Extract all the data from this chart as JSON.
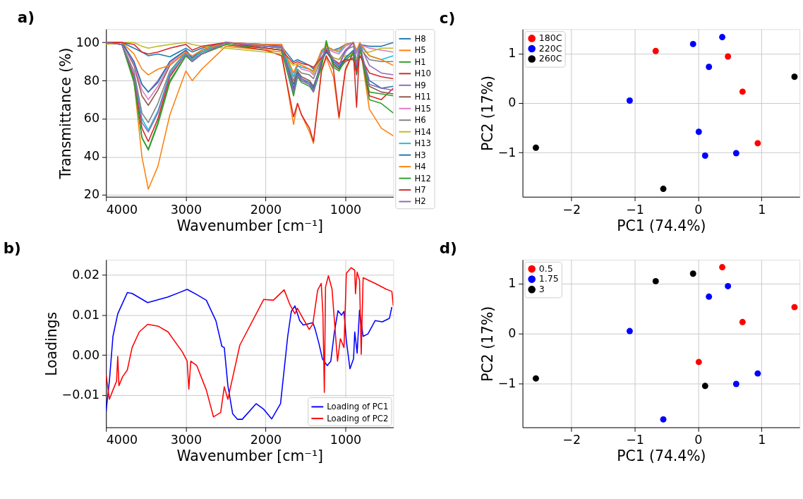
{
  "chart_data": [
    {
      "type": "line",
      "title": "a)",
      "xlabel": "Wavenumber [cm⁻¹]",
      "ylabel": "Transmittance (%)",
      "xlim": [
        4000,
        400
      ],
      "ylim": [
        19,
        107
      ],
      "xticks": [
        4000,
        3000,
        2000,
        1000
      ],
      "yticks": [
        20,
        40,
        60,
        80,
        100
      ],
      "grid": true,
      "legend": "right",
      "line_style": "solid",
      "x": [
        4000,
        3800,
        3650,
        3550,
        3470,
        3350,
        3200,
        3000,
        2920,
        2800,
        2500,
        2000,
        1800,
        1650,
        1600,
        1550,
        1450,
        1400,
        1300,
        1240,
        1150,
        1080,
        1000,
        900,
        860,
        820,
        700,
        550,
        400
      ],
      "series": [
        {
          "name": "H8",
          "color": "#1f77b4",
          "values": [
            100,
            100,
            97,
            95,
            93,
            94,
            92.5,
            97,
            95,
            97,
            100,
            98,
            98,
            90,
            91,
            90,
            88,
            86,
            95,
            98,
            96,
            97,
            99,
            100,
            95,
            99,
            98,
            98,
            100
          ]
        },
        {
          "name": "H5",
          "color": "#ff7f0e",
          "values": [
            100,
            99,
            80,
            40,
            23,
            35,
            62,
            85,
            80,
            86,
            98,
            96,
            95,
            57,
            68,
            62,
            53,
            47,
            85,
            92,
            82,
            60,
            85,
            95,
            85,
            99,
            65,
            55,
            51
          ]
        },
        {
          "name": "H1",
          "color": "#2ca02c",
          "values": [
            100,
            99,
            80,
            50,
            44,
            58,
            80,
            93,
            90,
            94,
            99,
            97,
            96,
            73,
            83,
            80,
            78,
            75,
            88,
            101,
            88,
            86,
            92,
            95,
            85,
            98,
            70,
            68,
            63
          ]
        },
        {
          "name": "H10",
          "color": "#d62728",
          "values": [
            100,
            99,
            82,
            55,
            48,
            60,
            82,
            94,
            90,
            94,
            99,
            96,
            93,
            61,
            68,
            62,
            55,
            48,
            85,
            93,
            86,
            61,
            86,
            95,
            66,
            99,
            72,
            70,
            76
          ]
        },
        {
          "name": "H9",
          "color": "#9467bd",
          "values": [
            100,
            100,
            90,
            78,
            74,
            80,
            90,
            96,
            92,
            96,
            100,
            99,
            99,
            75,
            83,
            80,
            78,
            74,
            92,
            96,
            91,
            88,
            95,
            100,
            90,
            99,
            88,
            84,
            83
          ]
        },
        {
          "name": "H11",
          "color": "#8c564b",
          "values": [
            100,
            100,
            88,
            72,
            67,
            75,
            88,
            95,
            91,
            95,
            100,
            98,
            97,
            78,
            85,
            82,
            80,
            77,
            89,
            97,
            89,
            86,
            90,
            92,
            83,
            96,
            77,
            74,
            73
          ]
        },
        {
          "name": "H15",
          "color": "#e377c2",
          "values": [
            100,
            100,
            89,
            75,
            70,
            77,
            89,
            96,
            92,
            96,
            100,
            99,
            99,
            82,
            88,
            86,
            85,
            83,
            94,
            97,
            95,
            94,
            98,
            100,
            94,
            99,
            97,
            96,
            95
          ]
        },
        {
          "name": "H6",
          "color": "#7f7f7f",
          "values": [
            100,
            99,
            85,
            63,
            58,
            68,
            85,
            95,
            91,
            95,
            100,
            98,
            97,
            80,
            86,
            84,
            83,
            81,
            92,
            96,
            92,
            91,
            96,
            98,
            90,
            97,
            91,
            90,
            90
          ]
        },
        {
          "name": "H14",
          "color": "#bcbd22",
          "values": [
            99,
            100,
            100,
            98,
            97,
            98,
            99,
            100,
            99,
            98,
            97,
            95,
            94,
            88,
            89,
            88,
            86,
            84,
            92,
            95,
            92,
            91,
            93,
            94,
            91,
            95,
            95,
            97,
            97
          ]
        },
        {
          "name": "H13",
          "color": "#17becf",
          "values": [
            null,
            null,
            83,
            60,
            54,
            64,
            84,
            95,
            91,
            95,
            100,
            98,
            98,
            82,
            88,
            87,
            86,
            85,
            95,
            98,
            96,
            95,
            99,
            100,
            95,
            99,
            93,
            91,
            93
          ]
        },
        {
          "name": "H3",
          "color": "#1f77b4",
          "values": [
            100,
            100,
            90,
            78,
            74,
            79,
            90,
            96,
            92,
            96,
            100,
            99,
            98,
            76,
            84,
            81,
            79,
            76,
            90,
            95,
            90,
            87,
            92,
            96,
            86,
            97,
            80,
            76,
            77
          ]
        },
        {
          "name": "H4",
          "color": "#ff7f0e",
          "values": [
            100,
            100,
            94,
            86,
            83,
            86,
            88,
            95,
            93,
            96,
            100,
            99,
            99,
            84,
            89,
            88,
            86,
            85,
            96,
            98,
            96,
            96,
            99,
            100,
            96,
            100,
            93,
            91,
            88
          ]
        },
        {
          "name": "H12",
          "color": "#2ca02c",
          "values": [
            100,
            99,
            79,
            50,
            43.5,
            57,
            79,
            93,
            90,
            94,
            99,
            97,
            96,
            72,
            82,
            79,
            77,
            74,
            87,
            100,
            87,
            85,
            91,
            94,
            84,
            97,
            74,
            73,
            72
          ]
        },
        {
          "name": "H7",
          "color": "#d62728",
          "values": [
            100,
            100,
            99,
            95,
            94,
            95,
            97,
            99,
            96,
            98,
            100,
            97,
            96,
            89,
            90,
            89,
            88,
            87,
            92,
            96,
            91,
            89,
            91,
            91,
            85,
            93,
            84,
            82,
            81
          ]
        },
        {
          "name": "H2",
          "color": "#9467bd",
          "values": [
            100,
            99,
            83,
            58,
            53,
            63,
            83,
            94,
            90,
            94,
            100,
            98,
            98,
            74,
            83,
            81,
            78,
            74,
            91,
            97,
            91,
            88,
            96,
            100,
            88,
            99,
            78,
            76,
            75
          ]
        }
      ]
    },
    {
      "type": "line",
      "title": "b)",
      "xlabel": "Wavenumber [cm⁻¹]",
      "ylabel": "Loadings",
      "xlim": [
        4000,
        400
      ],
      "ylim": [
        -0.018,
        0.0238
      ],
      "xticks": [
        4000,
        3000,
        2000,
        1000
      ],
      "yticks": [
        {
          "value": -0.01,
          "label": "−0.01"
        },
        {
          "value": 0,
          "label": "0.00"
        },
        {
          "value": 0.01,
          "label": "0.01"
        },
        {
          "value": 0.02,
          "label": "0.02"
        }
      ],
      "grid": true,
      "legend": "bottom right",
      "line_style": "solid",
      "series": [
        {
          "name": "Loading of PC1",
          "color": "#0000ff",
          "x": [
            4000,
            3958,
            3913,
            3853,
            3733,
            3673,
            3478,
            3223,
            2983,
            2863,
            2743,
            2623,
            2548,
            2518,
            2473,
            2413,
            2353,
            2293,
            2119,
            2023,
            1924,
            1813,
            1723,
            1678,
            1633,
            1573,
            1528,
            1408,
            1378,
            1333,
            1288,
            1228,
            1183,
            1138,
            1093,
            1048,
            1018,
            988,
            943,
            898,
            883,
            853,
            823,
            778,
            718,
            628,
            538,
            448,
            418
          ],
          "values": [
            -0.0141,
            -0.0065,
            0.0047,
            0.0103,
            0.0156,
            0.0154,
            0.0131,
            0.0145,
            0.0164,
            0.0151,
            0.0137,
            0.0086,
            0.0022,
            0.0019,
            -0.0076,
            -0.0146,
            -0.016,
            -0.016,
            -0.0121,
            -0.0135,
            -0.0159,
            -0.0121,
            0.0047,
            0.0109,
            0.0123,
            0.0086,
            0.0075,
            0.0081,
            0.0064,
            0.003,
            -0.0009,
            -0.0026,
            -0.0015,
            0.0058,
            0.0111,
            0.01,
            0.0109,
            0.0036,
            -0.0034,
            -0.0009,
            0.0058,
            0.0005,
            0.0112,
            0.0047,
            0.0053,
            0.0086,
            0.0083,
            0.0092,
            0.012
          ]
        },
        {
          "name": "Loading of PC2",
          "color": "#ff0000",
          "x": [
            4000,
            3958,
            3913,
            3868,
            3853,
            3838,
            3793,
            3733,
            3673,
            3583,
            3478,
            3343,
            3223,
            3043,
            2983,
            2962,
            2938,
            2863,
            2743,
            2653,
            2563,
            2518,
            2473,
            2323,
            2023,
            1903,
            1768,
            1693,
            1633,
            1603,
            1453,
            1408,
            1348,
            1303,
            1282,
            1264,
            1249,
            1213,
            1168,
            1099,
            1063,
            1018,
            988,
            928,
            883,
            874,
            853,
            823,
            802,
            778,
            628,
            493,
            418,
            400
          ],
          "values": [
            -0.0048,
            -0.011,
            -0.0087,
            -0.0065,
            -0.0003,
            -0.0076,
            -0.0054,
            -0.0037,
            0.0019,
            0.0058,
            0.0077,
            0.0072,
            0.0058,
            0.0008,
            -0.0015,
            -0.0085,
            -0.0015,
            -0.0026,
            -0.0087,
            -0.0154,
            -0.0143,
            -0.0079,
            -0.011,
            0.0025,
            0.0139,
            0.0137,
            0.0163,
            0.0125,
            0.0103,
            0.0117,
            0.0064,
            0.0078,
            0.0162,
            0.0179,
            0.0103,
            -0.0093,
            0.017,
            0.0198,
            0.0165,
            -0.0015,
            0.0041,
            0.0019,
            0.0204,
            0.0218,
            0.0212,
            0.0153,
            0.0207,
            0.0187,
            0.0002,
            0.0193,
            0.0179,
            0.0165,
            0.0159,
            0.0123
          ]
        }
      ]
    },
    {
      "type": "scatter",
      "title": "c)",
      "xlabel": "PC1 (74.4%)",
      "ylabel": "PC2 (17%)",
      "xlim": [
        -2.77,
        1.6
      ],
      "ylim": [
        -1.89,
        1.49
      ],
      "xticks": [
        -2,
        -1,
        0,
        1
      ],
      "yticks": [
        -1,
        0,
        1
      ],
      "grid": true,
      "legend": "top left",
      "marker": "circle",
      "series": [
        {
          "name": "180C",
          "color": "#ff0000",
          "x": [
            -0.67,
            0.47,
            0.7,
            0.94
          ],
          "values": [
            1.05,
            0.94,
            0.23,
            -0.81
          ]
        },
        {
          "name": "220C",
          "color": "#0000ff",
          "x": [
            -0.08,
            0.38,
            0.17,
            -1.08,
            0.01,
            0.11,
            0.6
          ],
          "values": [
            1.19,
            1.33,
            0.73,
            0.05,
            -0.58,
            -1.06,
            -1.01
          ]
        },
        {
          "name": "260C",
          "color": "#000000",
          "x": [
            1.52,
            -2.56,
            -0.55
          ],
          "values": [
            0.53,
            -0.9,
            -1.73
          ]
        }
      ]
    },
    {
      "type": "scatter",
      "title": "d)",
      "xlabel": "PC1 (74.4%)",
      "ylabel": "PC2 (17%)",
      "xlim": [
        -2.77,
        1.6
      ],
      "ylim": [
        -1.88,
        1.48
      ],
      "xticks": [
        -2,
        -1,
        0,
        1
      ],
      "yticks": [
        -1,
        0,
        1
      ],
      "grid": true,
      "legend": "top left",
      "marker": "circle",
      "series": [
        {
          "name": "0.5",
          "color": "#ff0000",
          "x": [
            0.38,
            1.52,
            0.7,
            0.01
          ],
          "values": [
            1.33,
            0.53,
            0.23,
            -0.57
          ]
        },
        {
          "name": "1.75",
          "color": "#0000ff",
          "x": [
            0.47,
            0.17,
            -1.08,
            0.94,
            0.6,
            -0.55
          ],
          "values": [
            0.95,
            0.74,
            0.05,
            -0.8,
            -1.01,
            -1.72
          ]
        },
        {
          "name": "3",
          "color": "#000000",
          "x": [
            -0.67,
            -0.08,
            -2.56,
            0.11
          ],
          "values": [
            1.05,
            1.2,
            -0.9,
            -1.05
          ]
        }
      ]
    }
  ]
}
